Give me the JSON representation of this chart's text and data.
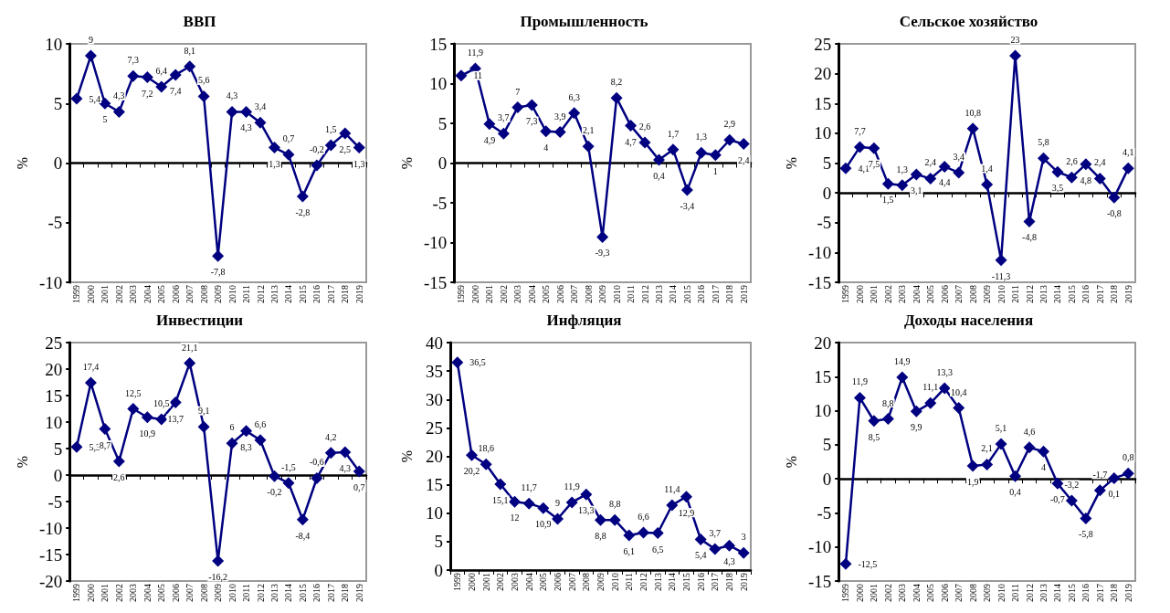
{
  "chart_data": [
    {
      "type": "line",
      "title": "ВВП",
      "ylabel": "%",
      "categories": [
        "1999",
        "2000",
        "2001",
        "2002",
        "2003",
        "2004",
        "2005",
        "2006",
        "2007",
        "2008",
        "2009",
        "2010",
        "2011",
        "2012",
        "2013",
        "2014",
        "2015",
        "2016",
        "2017",
        "2018",
        "2019"
      ],
      "values": [
        5.4,
        9,
        5,
        4.3,
        7.3,
        7.2,
        6.4,
        7.4,
        8.1,
        5.6,
        -7.8,
        4.3,
        4.3,
        3.4,
        1.3,
        0.7,
        -2.8,
        -0.2,
        1.5,
        2.5,
        1.3
      ],
      "value_labels": [
        "5,4",
        "9",
        "5",
        "4,3",
        "7,3",
        "7,2",
        "6,4",
        "7,4",
        "8,1",
        "5,6",
        "-7,8",
        "4,3",
        "4,3",
        "3,4",
        "1,3",
        "0,7",
        "-2,8",
        "-0,2",
        "1,5",
        "2,5",
        "1,3"
      ],
      "color": "#000080",
      "marker": "diamond",
      "ylim": [
        -10,
        10
      ],
      "yticks": [
        -10,
        -5,
        0,
        5,
        10
      ]
    },
    {
      "type": "line",
      "title": "Промышленность",
      "ylabel": "%",
      "categories": [
        "1999",
        "2000",
        "2001",
        "2002",
        "2003",
        "2004",
        "2005",
        "2006",
        "2007",
        "2008",
        "2009",
        "2010",
        "2011",
        "2012",
        "2013",
        "2014",
        "2015",
        "2016",
        "2017",
        "2018",
        "2019"
      ],
      "values": [
        11,
        11.9,
        4.9,
        3.7,
        7,
        7.3,
        4,
        3.9,
        6.3,
        2.1,
        -9.3,
        8.2,
        4.7,
        2.6,
        0.4,
        1.7,
        -3.4,
        1.3,
        1,
        2.9,
        2.4
      ],
      "value_labels": [
        "11",
        "11,9",
        "4,9",
        "3,7",
        "7",
        "7,3",
        "4",
        "3,9",
        "6,3",
        "2,1",
        "-9,3",
        "8,2",
        "4,7",
        "2,6",
        "0,4",
        "1,7",
        "-3,4",
        "1,3",
        "1",
        "2,9",
        "2,4"
      ],
      "color": "#000080",
      "marker": "diamond",
      "ylim": [
        -15,
        15
      ],
      "yticks": [
        -15,
        -10,
        -5,
        0,
        5,
        10,
        15
      ]
    },
    {
      "type": "line",
      "title": "Сельское хозяйство",
      "ylabel": "%",
      "categories": [
        "1999",
        "2000",
        "2001",
        "2002",
        "2003",
        "2004",
        "2005",
        "2006",
        "2007",
        "2008",
        "2009",
        "2010",
        "2011",
        "2012",
        "2013",
        "2014",
        "2015",
        "2016",
        "2017",
        "2018",
        "2019"
      ],
      "values": [
        4.1,
        7.7,
        7.5,
        1.5,
        1.3,
        3.1,
        2.4,
        4.4,
        3.4,
        10.8,
        1.4,
        -11.3,
        23,
        -4.8,
        5.8,
        3.5,
        2.6,
        4.8,
        2.4,
        -0.8,
        4.1
      ],
      "value_labels": [
        "4,1",
        "7,7",
        "7,5",
        "1,5",
        "1,3",
        "3,1",
        "2,4",
        "4,4",
        "3,4",
        "10,8",
        "1,4",
        "-11,3",
        "23",
        "-4,8",
        "5,8",
        "3,5",
        "2,6",
        "4,8",
        "2,4",
        "-0,8",
        "4,1"
      ],
      "color": "#000080",
      "marker": "diamond",
      "ylim": [
        -15,
        25
      ],
      "yticks": [
        -15,
        -10,
        -5,
        0,
        5,
        10,
        15,
        20,
        25
      ]
    },
    {
      "type": "line",
      "title": "Инвестиции",
      "ylabel": "%",
      "categories": [
        "1999",
        "2000",
        "2001",
        "2002",
        "2003",
        "2004",
        "2005",
        "2006",
        "2007",
        "2008",
        "2009",
        "2010",
        "2011",
        "2012",
        "2013",
        "2014",
        "2015",
        "2016",
        "2017",
        "2018",
        "2019"
      ],
      "values": [
        5.3,
        17.4,
        8.7,
        2.6,
        12.5,
        10.9,
        10.5,
        13.7,
        21.1,
        9.1,
        -16.2,
        6,
        8.3,
        6.6,
        -0.2,
        -1.5,
        -8.4,
        -0.6,
        4.2,
        4.3,
        0.7
      ],
      "value_labels": [
        "5,3",
        "17,4",
        "8,7",
        "2,6",
        "12,5",
        "10,9",
        "10,5",
        "13,7",
        "21,1",
        "9,1",
        "-16,2",
        "6",
        "8,3",
        "6,6",
        "-0,2",
        "-1,5",
        "-8,4",
        "-0,6",
        "4,2",
        "4,3",
        "0,7"
      ],
      "color": "#000080",
      "marker": "diamond",
      "ylim": [
        -20,
        25
      ],
      "yticks": [
        -20,
        -15,
        -10,
        -5,
        0,
        5,
        10,
        15,
        20,
        25
      ]
    },
    {
      "type": "line",
      "title": "Инфляция",
      "ylabel": "%",
      "categories": [
        "1999",
        "2000",
        "2001",
        "2002",
        "2003",
        "2004",
        "2005",
        "2006",
        "2007",
        "2008",
        "2009",
        "2010",
        "2011",
        "2012",
        "2013",
        "2014",
        "2015",
        "2016",
        "2017",
        "2018",
        "2019"
      ],
      "values": [
        36.5,
        20.2,
        18.6,
        15.1,
        12,
        11.7,
        10.9,
        9,
        11.9,
        13.3,
        8.8,
        8.8,
        6.1,
        6.6,
        6.5,
        11.4,
        12.9,
        5.4,
        3.7,
        4.3,
        3
      ],
      "value_labels": [
        "36,5",
        "20,2",
        "18,6",
        "15,1",
        "12",
        "11,7",
        "10,9",
        "9",
        "11,9",
        "13,3",
        "8,8",
        "8,8",
        "6,1",
        "6,6",
        "6,5",
        "11,4",
        "12,9",
        "5,4",
        "3,7",
        "4,3",
        "3"
      ],
      "color": "#000080",
      "marker": "diamond",
      "ylim": [
        0,
        40
      ],
      "yticks": [
        0,
        5,
        10,
        15,
        20,
        25,
        30,
        35,
        40
      ]
    },
    {
      "type": "line",
      "title": "Доходы населения",
      "ylabel": "%",
      "categories": [
        "1999",
        "2000",
        "2001",
        "2002",
        "2003",
        "2004",
        "2005",
        "2006",
        "2007",
        "2008",
        "2009",
        "2010",
        "2011",
        "2012",
        "2013",
        "2014",
        "2015",
        "2016",
        "2017",
        "2018",
        "2019"
      ],
      "values": [
        -12.5,
        11.9,
        8.5,
        8.8,
        14.9,
        9.9,
        11.1,
        13.3,
        10.4,
        1.9,
        2.1,
        5.1,
        0.4,
        4.6,
        4,
        -0.7,
        -3.2,
        -5.8,
        -1.7,
        0.1,
        0.8
      ],
      "value_labels": [
        "-12,5",
        "11,9",
        "8,5",
        "8,8",
        "14,9",
        "9,9",
        "11,1",
        "13,3",
        "10,4",
        "1,9",
        "2,1",
        "5,1",
        "0,4",
        "4,6",
        "4",
        "-0,7",
        "-3,2",
        "-5,8",
        "-1,7",
        "0,1",
        "0,8"
      ],
      "color": "#000080",
      "marker": "diamond",
      "ylim": [
        -15,
        20
      ],
      "yticks": [
        -15,
        -10,
        -5,
        0,
        5,
        10,
        15,
        20
      ]
    }
  ]
}
